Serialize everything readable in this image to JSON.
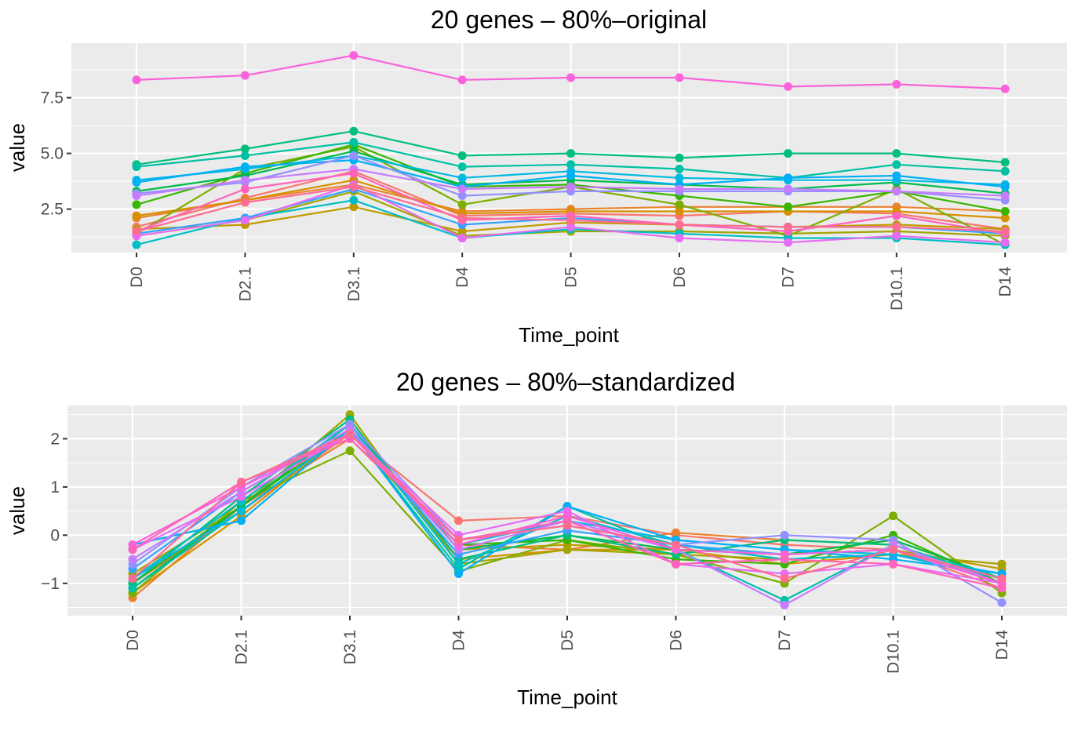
{
  "chart_data": [
    {
      "type": "line",
      "title": "20  genes –  80%–original",
      "xlabel": "Time_point",
      "ylabel": "value",
      "categories": [
        "D0",
        "D2.1",
        "D3.1",
        "D4",
        "D5",
        "D6",
        "D7",
        "D10.1",
        "D14"
      ],
      "ylim": [
        0.55,
        9.95
      ],
      "yticks": [
        2.5,
        5.0,
        7.5
      ],
      "ytick_labels": [
        "2.5",
        "5.0",
        "7.5"
      ],
      "grid": true,
      "legend": "none",
      "series": [
        {
          "color": "#F8766D",
          "values": [
            1.7,
            3.0,
            4.2,
            2.2,
            2.3,
            2.2,
            2.4,
            2.3,
            1.6
          ]
        },
        {
          "color": "#EA8331",
          "values": [
            2.1,
            2.9,
            3.6,
            2.4,
            2.5,
            2.6,
            2.6,
            2.6,
            2.4
          ]
        },
        {
          "color": "#D89000",
          "values": [
            2.2,
            2.9,
            3.8,
            2.3,
            2.4,
            2.4,
            2.4,
            2.4,
            2.1
          ]
        },
        {
          "color": "#C09B00",
          "values": [
            1.6,
            1.8,
            2.6,
            1.5,
            1.9,
            1.8,
            1.7,
            1.8,
            1.6
          ]
        },
        {
          "color": "#A3A500",
          "values": [
            1.3,
            2.0,
            3.3,
            1.3,
            1.5,
            1.5,
            1.4,
            1.5,
            1.3
          ]
        },
        {
          "color": "#7CAE00",
          "values": [
            1.4,
            4.3,
            5.3,
            2.7,
            3.5,
            2.7,
            1.3,
            3.4,
            0.9
          ]
        },
        {
          "color": "#39B600",
          "values": [
            2.7,
            4.1,
            5.4,
            3.5,
            3.6,
            3.1,
            2.6,
            3.3,
            2.4
          ]
        },
        {
          "color": "#00BB4E",
          "values": [
            3.3,
            4.0,
            5.1,
            3.6,
            3.8,
            3.6,
            3.4,
            3.7,
            3.2
          ]
        },
        {
          "color": "#00BF7D",
          "values": [
            4.5,
            5.2,
            6.0,
            4.9,
            5.0,
            4.8,
            5.0,
            5.0,
            4.6
          ]
        },
        {
          "color": "#00C1A3",
          "values": [
            4.4,
            4.9,
            5.5,
            4.4,
            4.5,
            4.3,
            3.9,
            4.5,
            4.2
          ]
        },
        {
          "color": "#00BFC4",
          "values": [
            0.9,
            2.1,
            2.9,
            1.2,
            1.6,
            1.4,
            1.2,
            1.2,
            0.9
          ]
        },
        {
          "color": "#00BAE0",
          "values": [
            3.8,
            4.3,
            4.9,
            3.9,
            4.2,
            3.9,
            3.8,
            3.8,
            3.6
          ]
        },
        {
          "color": "#00B0F6",
          "values": [
            3.7,
            4.4,
            4.7,
            3.5,
            4.0,
            3.6,
            3.9,
            4.0,
            3.5
          ]
        },
        {
          "color": "#35A2FF",
          "values": [
            1.4,
            2.1,
            3.4,
            1.8,
            2.1,
            1.8,
            1.7,
            1.7,
            1.4
          ]
        },
        {
          "color": "#9590FF",
          "values": [
            3.2,
            3.7,
            4.9,
            3.1,
            3.3,
            3.3,
            3.3,
            3.3,
            2.9
          ]
        },
        {
          "color": "#C77CFF",
          "values": [
            3.1,
            3.8,
            4.3,
            3.4,
            3.5,
            3.4,
            3.4,
            3.3,
            3.1
          ]
        },
        {
          "color": "#E76BF3",
          "values": [
            1.3,
            2.0,
            3.6,
            1.2,
            1.7,
            1.2,
            1.0,
            1.3,
            1.0
          ]
        },
        {
          "color": "#FA62DB",
          "values": [
            8.3,
            8.5,
            9.4,
            8.3,
            8.4,
            8.4,
            8.0,
            8.1,
            7.9
          ]
        },
        {
          "color": "#FF62BC",
          "values": [
            1.5,
            3.4,
            4.1,
            2.0,
            2.2,
            1.8,
            1.5,
            2.2,
            1.4
          ]
        },
        {
          "color": "#FF6C91",
          "values": [
            1.5,
            2.8,
            3.5,
            2.1,
            2.0,
            1.8,
            1.7,
            1.7,
            1.5
          ]
        }
      ]
    },
    {
      "type": "line",
      "title": "20  genes –  80%–standardized",
      "xlabel": "Time_point",
      "ylabel": "value",
      "categories": [
        "D0",
        "D2.1",
        "D3.1",
        "D4",
        "D5",
        "D6",
        "D7",
        "D10.1",
        "D14"
      ],
      "ylim": [
        -1.67,
        2.69
      ],
      "yticks": [
        -1,
        0,
        1,
        2
      ],
      "ytick_labels": [
        "−1",
        "0",
        "1",
        "2"
      ],
      "grid": true,
      "legend": "none",
      "series": [
        {
          "color": "#F8766D",
          "values": [
            -1.0,
            0.5,
            2.1,
            0.3,
            0.4,
            0.0,
            -0.2,
            -0.3,
            -1.1
          ]
        },
        {
          "color": "#EA8331",
          "values": [
            -1.3,
            0.6,
            2.0,
            -0.2,
            -0.3,
            0.05,
            -0.1,
            -0.2,
            -0.9
          ]
        },
        {
          "color": "#D89000",
          "values": [
            -1.2,
            0.4,
            2.2,
            -0.5,
            -0.3,
            -0.3,
            -0.6,
            -0.4,
            -0.6
          ]
        },
        {
          "color": "#C09B00",
          "values": [
            -0.9,
            0.7,
            2.3,
            -0.3,
            -0.2,
            -0.3,
            -0.4,
            -0.3,
            -0.7
          ]
        },
        {
          "color": "#A3A500",
          "values": [
            -0.8,
            0.6,
            2.5,
            -0.6,
            -0.3,
            -0.4,
            -0.5,
            -0.4,
            -0.6
          ]
        },
        {
          "color": "#7CAE00",
          "values": [
            -1.2,
            0.7,
            1.75,
            -0.75,
            -0.1,
            -0.4,
            -1.0,
            0.4,
            -1.2
          ]
        },
        {
          "color": "#39B600",
          "values": [
            -1.0,
            0.6,
            2.2,
            -0.2,
            -0.1,
            -0.5,
            -0.6,
            0.0,
            -1.0
          ]
        },
        {
          "color": "#00BB4E",
          "values": [
            -1.1,
            0.6,
            2.3,
            -0.3,
            0.0,
            -0.3,
            -0.4,
            -0.1,
            -0.9
          ]
        },
        {
          "color": "#00BF7D",
          "values": [
            -1.0,
            0.8,
            2.4,
            -0.5,
            0.0,
            -0.4,
            -0.1,
            -0.2,
            -1.0
          ]
        },
        {
          "color": "#00C1A3",
          "values": [
            -1.1,
            0.5,
            2.2,
            -0.7,
            0.6,
            -0.3,
            -1.35,
            -0.2,
            -0.9
          ]
        },
        {
          "color": "#00BFC4",
          "values": [
            -0.9,
            0.7,
            2.3,
            -0.6,
            0.4,
            -0.2,
            -0.5,
            -0.4,
            -0.9
          ]
        },
        {
          "color": "#00BAE0",
          "values": [
            -0.9,
            0.5,
            2.2,
            -0.2,
            0.3,
            -0.1,
            -0.3,
            -0.4,
            -0.8
          ]
        },
        {
          "color": "#00B0F6",
          "values": [
            -0.2,
            0.3,
            2.2,
            -0.8,
            0.6,
            -0.1,
            -0.3,
            -0.5,
            -0.8
          ]
        },
        {
          "color": "#35A2FF",
          "values": [
            -0.7,
            0.9,
            2.2,
            -0.4,
            0.1,
            -0.2,
            -0.4,
            -0.3,
            -0.9
          ]
        },
        {
          "color": "#9590FF",
          "values": [
            -0.6,
            1.0,
            2.3,
            -0.1,
            0.2,
            -0.2,
            0.0,
            -0.1,
            -1.4
          ]
        },
        {
          "color": "#C77CFF",
          "values": [
            -0.5,
            0.9,
            2.2,
            -0.3,
            0.3,
            -0.3,
            -1.45,
            -0.2,
            -1.0
          ]
        },
        {
          "color": "#E76BF3",
          "values": [
            -0.3,
            0.8,
            2.1,
            0.0,
            0.5,
            -0.6,
            -0.8,
            -0.6,
            -1.0
          ]
        },
        {
          "color": "#FA62DB",
          "values": [
            -0.2,
            1.0,
            2.1,
            -0.2,
            0.4,
            -0.3,
            -0.4,
            -0.3,
            -1.0
          ]
        },
        {
          "color": "#FF62BC",
          "values": [
            -0.3,
            1.1,
            2.0,
            -0.1,
            0.3,
            -0.6,
            -0.5,
            -0.6,
            -1.1
          ]
        },
        {
          "color": "#FF6C91",
          "values": [
            -0.9,
            1.1,
            2.1,
            -0.1,
            0.2,
            -0.2,
            -0.9,
            -0.3,
            -0.9
          ]
        }
      ]
    }
  ]
}
